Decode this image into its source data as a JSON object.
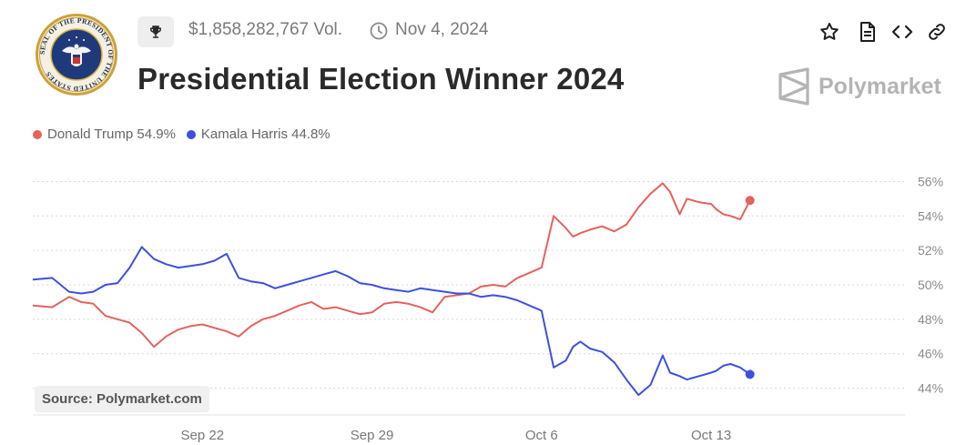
{
  "header": {
    "volume": "$1,858,282,767 Vol.",
    "date": "Nov 4, 2024",
    "title": "Presidential Election Winner 2024",
    "brand": "Polymarket",
    "source": "Source: Polymarket.com",
    "seal_text": "SEAL OF THE PRESIDENT OF THE UNITED STATES"
  },
  "icons": {
    "trophy": "trophy-icon",
    "clock": "clock-icon",
    "star": "star-icon",
    "document": "document-icon",
    "embed": "code-icon",
    "link": "link-icon"
  },
  "colors": {
    "trump": "#e5625d",
    "harris": "#3c50e0",
    "grid": "#d9d9d9"
  },
  "chart_data": {
    "type": "line",
    "ylim": [
      43.5,
      56.5
    ],
    "yticks": [
      44,
      46,
      48,
      50,
      52,
      54,
      56
    ],
    "ytick_labels": [
      "44%",
      "46%",
      "48%",
      "50%",
      "52%",
      "54%",
      "56%"
    ],
    "xlim": [
      0,
      36
    ],
    "xticks": [
      7,
      14,
      21,
      28
    ],
    "xtick_labels": [
      "Sep 22",
      "Sep 29",
      "Oct 6",
      "Oct 13"
    ],
    "series": [
      {
        "name": "Donald Trump",
        "legend": "Donald Trump 54.9%",
        "color": "#e5625d",
        "x": [
          0,
          0.8,
          1.5,
          2,
          2.5,
          3,
          3.5,
          4,
          4.5,
          5,
          5.5,
          6,
          6.5,
          7,
          7.5,
          8,
          8.5,
          9,
          9.5,
          10,
          10.5,
          11,
          11.5,
          12,
          12.5,
          13,
          13.5,
          14,
          14.5,
          15,
          15.5,
          16,
          16.5,
          17,
          17.5,
          18,
          18.5,
          19,
          19.5,
          20,
          20.5,
          21,
          21.5,
          22,
          22.3,
          22.6,
          23,
          23.5,
          24,
          24.5,
          25,
          25.5,
          26,
          26.3,
          26.7,
          27,
          27.5,
          28,
          28.2,
          28.5,
          28.8,
          29.2,
          29.6
        ],
        "y": [
          48.8,
          48.7,
          49.3,
          49.0,
          48.9,
          48.2,
          48.0,
          47.8,
          47.2,
          46.4,
          47.0,
          47.4,
          47.6,
          47.7,
          47.5,
          47.3,
          47.0,
          47.6,
          48.0,
          48.2,
          48.5,
          48.8,
          49.0,
          48.6,
          48.7,
          48.5,
          48.3,
          48.4,
          48.9,
          49.0,
          48.9,
          48.7,
          48.4,
          49.3,
          49.4,
          49.5,
          49.9,
          50.0,
          49.9,
          50.4,
          50.7,
          51.0,
          54.0,
          53.3,
          52.8,
          53.0,
          53.2,
          53.4,
          53.1,
          53.5,
          54.5,
          55.3,
          55.9,
          55.4,
          54.1,
          55.0,
          54.8,
          54.7,
          54.4,
          54.1,
          54.0,
          53.8,
          54.9
        ]
      },
      {
        "name": "Kamala Harris",
        "legend": "Kamala Harris 44.8%",
        "color": "#3c50e0",
        "x": [
          0,
          0.8,
          1.5,
          2,
          2.5,
          3,
          3.5,
          4,
          4.5,
          5,
          5.5,
          6,
          6.5,
          7,
          7.5,
          8,
          8.5,
          9,
          9.5,
          10,
          10.5,
          11,
          11.5,
          12,
          12.5,
          13,
          13.5,
          14,
          14.5,
          15,
          15.5,
          16,
          16.5,
          17,
          17.5,
          18,
          18.5,
          19,
          19.5,
          20,
          20.5,
          21,
          21.5,
          22,
          22.3,
          22.6,
          23,
          23.5,
          24,
          24.5,
          25,
          25.5,
          26,
          26.3,
          26.7,
          27,
          27.5,
          28,
          28.2,
          28.5,
          28.8,
          29.2,
          29.6
        ],
        "y": [
          50.3,
          50.4,
          49.6,
          49.5,
          49.6,
          50.0,
          50.1,
          51.0,
          52.2,
          51.5,
          51.2,
          51.0,
          51.1,
          51.2,
          51.4,
          51.8,
          50.4,
          50.2,
          50.1,
          49.8,
          50.0,
          50.2,
          50.4,
          50.6,
          50.8,
          50.5,
          50.1,
          50.0,
          49.8,
          49.7,
          49.6,
          49.8,
          49.7,
          49.6,
          49.5,
          49.5,
          49.3,
          49.4,
          49.3,
          49.1,
          48.8,
          48.5,
          45.2,
          45.6,
          46.4,
          46.7,
          46.3,
          46.1,
          45.5,
          44.5,
          43.6,
          44.2,
          45.9,
          44.9,
          44.7,
          44.5,
          44.7,
          44.9,
          45.0,
          45.3,
          45.4,
          45.2,
          44.8
        ]
      }
    ]
  }
}
